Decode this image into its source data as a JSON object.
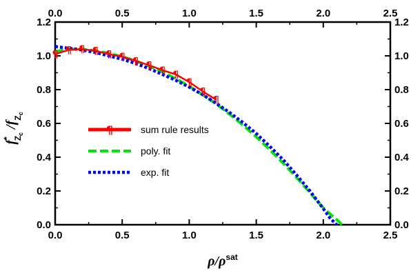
{
  "chart_data": {
    "type": "line",
    "xlabel": "ρ/ρ",
    "xlabel_sup": "sat",
    "ylabel_main": "f",
    "ylabel_sub1": "Z",
    "ylabel_subsub1": "c",
    "ylabel_sup": "*",
    "ylabel_sep": " /f",
    "ylabel_sub2": "Z",
    "ylabel_subsub2": "c",
    "xlim": [
      0,
      2.5
    ],
    "ylim": [
      0,
      1.2
    ],
    "x_ticks": [
      "0.0",
      "0.5",
      "1.0",
      "1.5",
      "2.0",
      "2.5"
    ],
    "y_ticks": [
      "0.0",
      "0.2",
      "0.4",
      "0.6",
      "0.8",
      "1.0",
      "1.2"
    ],
    "grid": false,
    "legend_position": "center-left",
    "series": [
      {
        "name": "sum rule results",
        "style": "solid-with-markers",
        "color": "#ff0000",
        "marker": "¶",
        "x": [
          0.0,
          0.1,
          0.2,
          0.3,
          0.4,
          0.5,
          0.6,
          0.7,
          0.8,
          0.9,
          1.0,
          1.1,
          1.2
        ],
        "y": [
          1.01,
          1.035,
          1.04,
          1.03,
          1.01,
          0.995,
          0.97,
          0.945,
          0.915,
          0.89,
          0.845,
          0.79,
          0.74
        ]
      },
      {
        "name": "poly. fit",
        "style": "dashed",
        "color": "#00e600",
        "x": [
          0.0,
          0.1,
          0.2,
          0.3,
          0.4,
          0.5,
          0.6,
          0.7,
          0.8,
          0.9,
          1.0,
          1.1,
          1.2,
          1.3,
          1.4,
          1.5,
          1.6,
          1.7,
          1.8,
          1.9,
          2.0,
          2.1,
          2.14
        ],
        "y": [
          1.025,
          1.04,
          1.04,
          1.03,
          1.015,
          0.995,
          0.97,
          0.94,
          0.905,
          0.865,
          0.82,
          0.77,
          0.715,
          0.655,
          0.59,
          0.52,
          0.445,
          0.365,
          0.28,
          0.19,
          0.1,
          0.03,
          0.0
        ]
      },
      {
        "name": "exp. fit",
        "style": "dotted",
        "color": "#0000ff",
        "x": [
          0.0,
          0.1,
          0.2,
          0.3,
          0.4,
          0.5,
          0.6,
          0.7,
          0.8,
          0.9,
          1.0,
          1.1,
          1.2,
          1.3,
          1.4,
          1.5,
          1.6,
          1.7,
          1.8,
          1.9,
          2.0,
          2.05,
          2.1
        ],
        "y": [
          1.055,
          1.045,
          1.035,
          1.02,
          1.0,
          0.98,
          0.955,
          0.925,
          0.89,
          0.855,
          0.815,
          0.77,
          0.72,
          0.665,
          0.605,
          0.54,
          0.465,
          0.385,
          0.295,
          0.2,
          0.095,
          0.04,
          0.0
        ]
      }
    ]
  }
}
